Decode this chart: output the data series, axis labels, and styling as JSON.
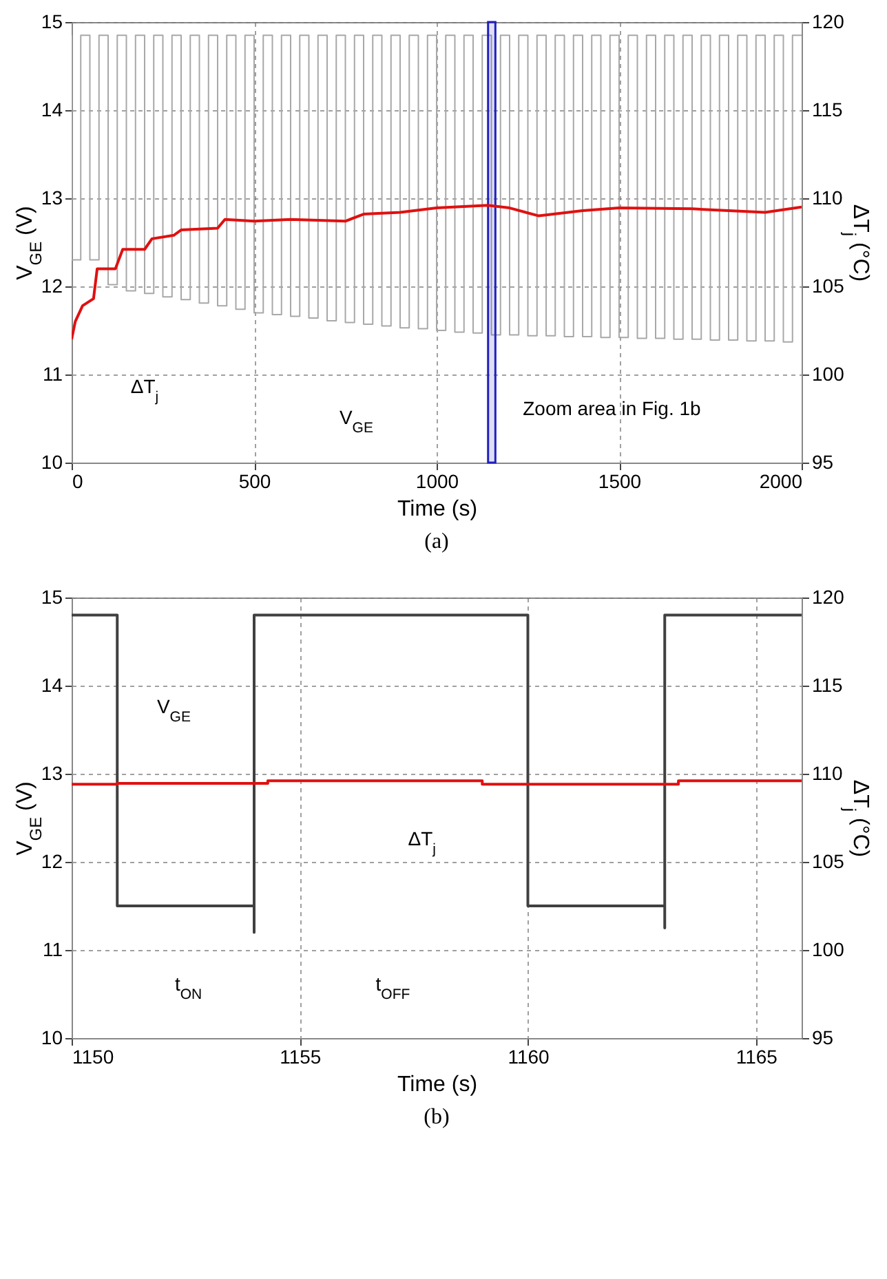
{
  "chart_data": [
    {
      "type": "line",
      "title": "(a)",
      "xlabel": "Time (s)",
      "ylabel": "V$_{GE}$ (V)",
      "y2label": "ΔT$_{j}$ (°C)",
      "xlim": [
        0,
        2000
      ],
      "xticks": [
        0,
        500,
        1000,
        1500,
        2000
      ],
      "ylim": [
        10,
        15
      ],
      "yticks": [
        10,
        11,
        12,
        13,
        14,
        15
      ],
      "y2lim": [
        95,
        120
      ],
      "y2ticks": [
        95,
        100,
        105,
        110,
        115,
        120
      ],
      "grid": true,
      "line_style": "solid",
      "series": [
        {
          "color": "#a8a8a8",
          "x": [
            0,
            0,
            25,
            25,
            50,
            50,
            75,
            75,
            100,
            100,
            125,
            125,
            150,
            150,
            175,
            175,
            200,
            200,
            225,
            225,
            250,
            250,
            275,
            275,
            300,
            300,
            325,
            325,
            350,
            350,
            375,
            375,
            400,
            400,
            425,
            425,
            450,
            450,
            475,
            475,
            500,
            500,
            525,
            525,
            550,
            550,
            575,
            575,
            600,
            600,
            625,
            625,
            650,
            650,
            675,
            675,
            700,
            700,
            725,
            725,
            750,
            750,
            775,
            775,
            800,
            800,
            825,
            825,
            850,
            850,
            875,
            875,
            900,
            900,
            925,
            925,
            950,
            950,
            975,
            975,
            1000,
            1000,
            1025,
            1025,
            1050,
            1050,
            1075,
            1075,
            1100,
            1100,
            1125,
            1125,
            1150,
            1150,
            1175,
            1175,
            1200,
            1200,
            1225,
            1225,
            1250,
            1250,
            1275,
            1275,
            1300,
            1300,
            1325,
            1325,
            1350,
            1350,
            1375,
            1375,
            1400,
            1400,
            1425,
            1425,
            1450,
            1450,
            1475,
            1475,
            1500,
            1500,
            1525,
            1525,
            1550,
            1550,
            1575,
            1575,
            1600,
            1600,
            1625,
            1625,
            1650,
            1650,
            1675,
            1675,
            1700,
            1700,
            1725,
            1725,
            1750,
            1750,
            1775,
            1775,
            1800,
            1800,
            1825,
            1825,
            1850,
            1850,
            1875,
            1875,
            1900,
            1900,
            1925,
            1925,
            1950,
            1950,
            1975,
            1975,
            2000
          ],
          "values": [
            14.85,
            12.3,
            12.3,
            14.85,
            14.85,
            12.3,
            12.3,
            14.85,
            14.85,
            12.02,
            12.02,
            14.85,
            14.85,
            11.95,
            11.95,
            14.85,
            14.85,
            11.92,
            11.92,
            14.85,
            14.85,
            11.88,
            11.88,
            14.85,
            14.85,
            11.85,
            11.85,
            14.85,
            14.85,
            11.81,
            11.81,
            14.85,
            14.85,
            11.78,
            11.78,
            14.85,
            14.85,
            11.74,
            11.74,
            14.85,
            14.85,
            11.7,
            11.7,
            14.85,
            14.85,
            11.68,
            11.68,
            14.85,
            14.85,
            11.66,
            11.66,
            14.85,
            14.85,
            11.64,
            11.64,
            14.85,
            14.85,
            11.61,
            11.61,
            14.85,
            14.85,
            11.59,
            11.59,
            14.85,
            14.85,
            11.57,
            11.57,
            14.85,
            14.85,
            11.55,
            11.55,
            14.85,
            14.85,
            11.53,
            11.53,
            14.85,
            14.85,
            11.52,
            11.52,
            14.85,
            14.85,
            11.5,
            11.5,
            14.85,
            14.85,
            11.48,
            11.48,
            14.85,
            14.85,
            11.47,
            11.47,
            14.85,
            14.85,
            11.45,
            11.45,
            14.85,
            14.85,
            11.45,
            11.45,
            14.85,
            14.85,
            11.44,
            11.44,
            14.85,
            14.85,
            11.44,
            11.44,
            14.85,
            14.85,
            11.43,
            11.43,
            14.85,
            14.85,
            11.43,
            11.43,
            14.85,
            14.85,
            11.42,
            11.42,
            14.85,
            14.85,
            11.42,
            11.42,
            14.85,
            14.85,
            11.41,
            11.41,
            14.85,
            14.85,
            11.41,
            11.41,
            14.85,
            14.85,
            11.4,
            11.4,
            14.85,
            14.85,
            11.4,
            11.4,
            14.85,
            14.85,
            11.39,
            11.39,
            14.85,
            14.85,
            11.39,
            11.39,
            14.85,
            14.85,
            11.38,
            11.38,
            14.85,
            14.85,
            11.38,
            11.38,
            14.85,
            14.85,
            11.37,
            11.37,
            14.85,
            14.85
          ]
        },
        {
          "color": "#e01010",
          "axis": "y2",
          "x": [
            0,
            10,
            30,
            60,
            70,
            120,
            140,
            200,
            220,
            280,
            300,
            400,
            420,
            500,
            600,
            750,
            800,
            900,
            1000,
            1140,
            1200,
            1280,
            1400,
            1500,
            1700,
            1900,
            2000
          ],
          "values": [
            102.0,
            103.0,
            103.9,
            104.3,
            106.0,
            106.0,
            107.1,
            107.1,
            107.7,
            107.9,
            108.2,
            108.3,
            108.8,
            108.7,
            108.8,
            108.7,
            109.1,
            109.2,
            109.45,
            109.6,
            109.45,
            109.0,
            109.3,
            109.45,
            109.4,
            109.2,
            109.5
          ]
        }
      ],
      "bands": [
        {
          "axis": "x",
          "from": 1141,
          "to": 1161,
          "color": "#2020c0"
        }
      ],
      "annotations": [
        "ΔT$_{j}$",
        "V$_{GE}$",
        "Zoom area in Fig. 1b"
      ]
    },
    {
      "type": "line",
      "title": "(b)",
      "xlabel": "Time (s)",
      "ylabel": "V$_{GE}$ (V)",
      "y2label": "ΔT$_{j}$ (°C)",
      "xlim": [
        1150,
        1166
      ],
      "xticks": [
        1150,
        1155,
        1160,
        1165
      ],
      "ylim": [
        10,
        15
      ],
      "yticks": [
        10,
        11,
        12,
        13,
        14,
        15
      ],
      "y2lim": [
        95,
        120
      ],
      "y2ticks": [
        95,
        100,
        105,
        110,
        115,
        120
      ],
      "grid": true,
      "line_style": "solid",
      "series": [
        {
          "color": "#404040",
          "x": [
            1150,
            1151,
            1151,
            1154,
            1154,
            1154,
            1160,
            1160,
            1163,
            1163,
            1163,
            1166
          ],
          "values": [
            14.8,
            14.8,
            11.5,
            11.5,
            11.2,
            14.8,
            14.8,
            11.5,
            11.5,
            11.25,
            14.8,
            14.8
          ]
        },
        {
          "type": "step",
          "color": "#e01010",
          "axis": "y2",
          "x": [
            1150,
            1151,
            1154.3,
            1159,
            1163.3,
            1166
          ],
          "values": [
            109.4,
            109.45,
            109.6,
            109.4,
            109.6,
            109.6
          ]
        }
      ],
      "annotations": [
        "V$_{GE}$",
        "ΔT$_{j}$",
        "t$_{ON}$",
        "t$_{OFF}$"
      ]
    }
  ]
}
